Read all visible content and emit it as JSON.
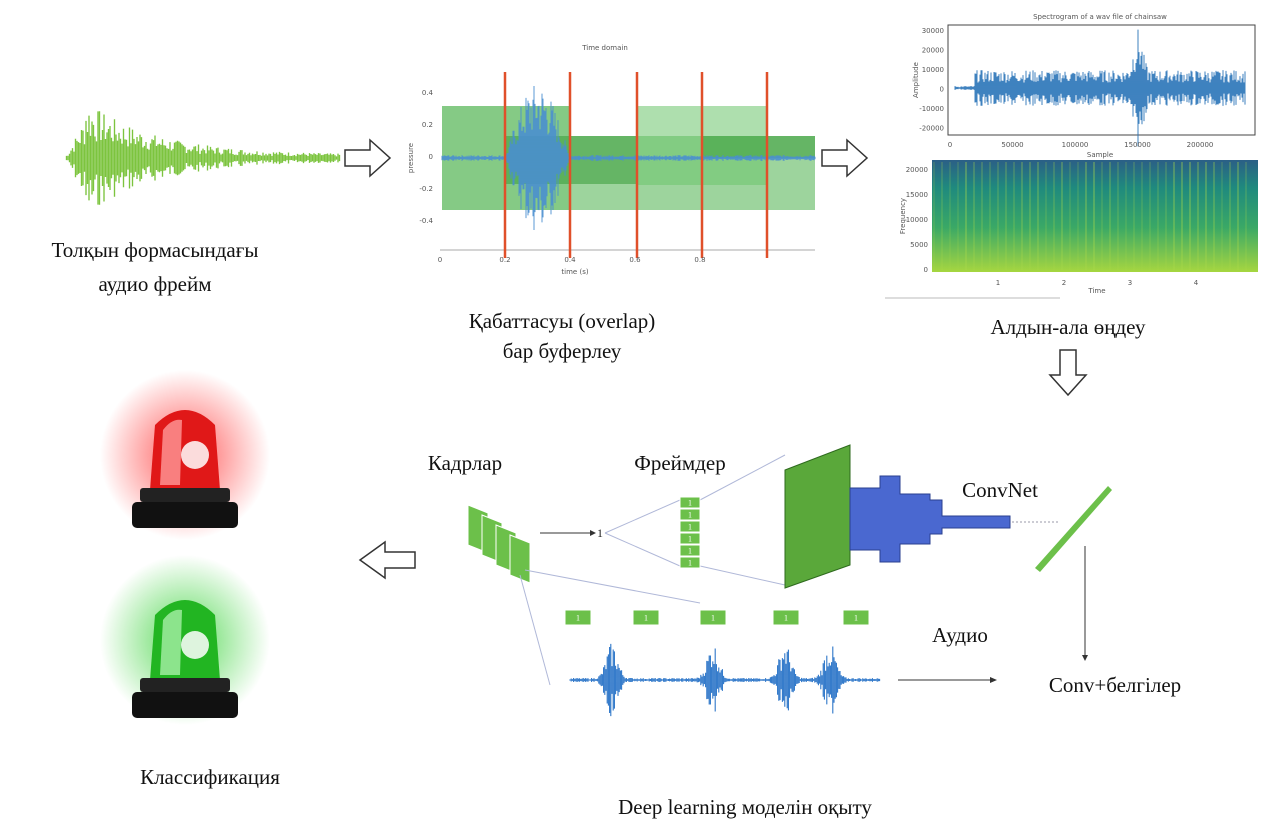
{
  "waveform": {
    "caption": [
      "Толқын формасындағы",
      "аудио фрейм"
    ]
  },
  "buffering": {
    "title": "Time domain",
    "y_label": "pressure",
    "x_label": "time (s)",
    "yticks": [
      "0.4",
      "0.2",
      "0",
      "-0.2",
      "-0.4"
    ],
    "xticks": [
      "0",
      "0.2",
      "0.4",
      "0.6",
      "0.8"
    ],
    "caption": [
      "Қабаттасуы (overlap)",
      "бар буферлеу"
    ]
  },
  "preprocessing": {
    "title": "Spectrogram of a wav file of chainsaw",
    "amp_label": "Amplitude",
    "sample_label": "Sample",
    "amp_yticks": [
      "30000",
      "20000",
      "10000",
      "0",
      "-10000",
      "-20000"
    ],
    "amp_xticks": [
      "0",
      "50000",
      "100000",
      "150000",
      "200000"
    ],
    "freq_label": "Frequency",
    "time_label": "Time",
    "freq_yticks": [
      "20000",
      "15000",
      "10000",
      "5000",
      "0"
    ],
    "time_xticks": [
      "1",
      "2",
      "3",
      "4"
    ],
    "caption": "Алдын-ала өңдеу"
  },
  "model": {
    "frames_label": "Кадрлар",
    "features_label": "Фреймдер",
    "convnet_label": "ConvNet",
    "audio_label": "Аудио",
    "output_label": "Conv+белгілер",
    "feature_value": "1",
    "caption": "Deep learning моделін оқыту"
  },
  "classification": {
    "caption": "Классификация"
  }
}
